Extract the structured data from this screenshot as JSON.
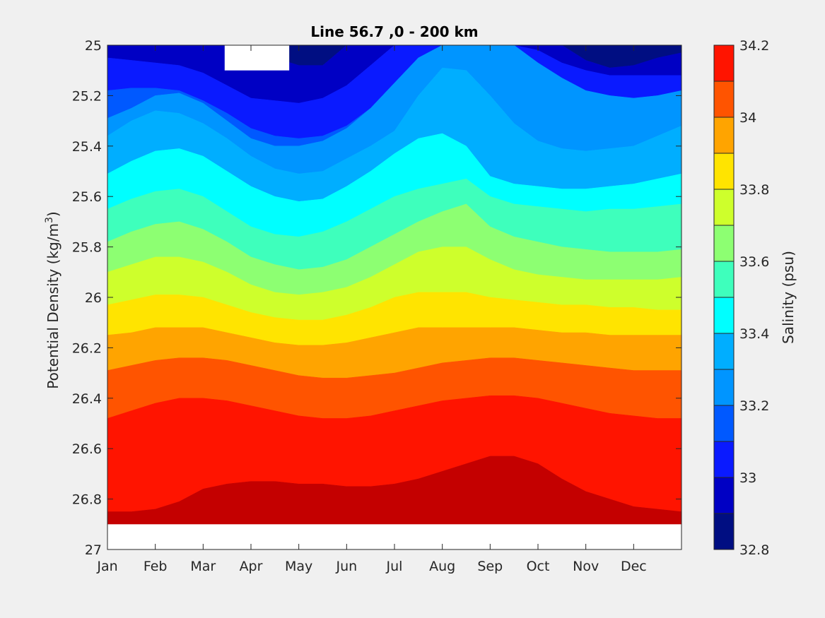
{
  "chart_data": {
    "type": "contourf",
    "title": "Line 56.7 ,0 - 200 km",
    "xlabel": "",
    "ylabel": "Potential Density (kg/m3)",
    "ylabel_parts": {
      "main": "Potential Density (kg/m",
      "sup": "3",
      "close": ")"
    },
    "xlim": [
      1,
      13
    ],
    "ylim": [
      25,
      27
    ],
    "y_reversed": true,
    "x_ticks": [
      {
        "value": 1,
        "label": "Jan"
      },
      {
        "value": 2,
        "label": "Feb"
      },
      {
        "value": 3,
        "label": "Mar"
      },
      {
        "value": 4,
        "label": "Apr"
      },
      {
        "value": 5,
        "label": "May"
      },
      {
        "value": 6,
        "label": "Jun"
      },
      {
        "value": 7,
        "label": "Jul"
      },
      {
        "value": 8,
        "label": "Aug"
      },
      {
        "value": 9,
        "label": "Sep"
      },
      {
        "value": 10,
        "label": "Oct"
      },
      {
        "value": 11,
        "label": "Nov"
      },
      {
        "value": 12,
        "label": "Dec"
      }
    ],
    "y_ticks": [
      {
        "value": 25,
        "label": "25"
      },
      {
        "value": 25.2,
        "label": "25.2"
      },
      {
        "value": 25.4,
        "label": "25.4"
      },
      {
        "value": 25.6,
        "label": "25.6"
      },
      {
        "value": 25.8,
        "label": "25.8"
      },
      {
        "value": 26,
        "label": "26"
      },
      {
        "value": 26.2,
        "label": "26.2"
      },
      {
        "value": 26.4,
        "label": "26.4"
      },
      {
        "value": 26.6,
        "label": "26.6"
      },
      {
        "value": 26.8,
        "label": "26.8"
      },
      {
        "value": 27,
        "label": "27"
      }
    ],
    "colorbar": {
      "label": "Salinity (psu)",
      "limits": [
        32.8,
        34.2
      ],
      "levels": [
        32.8,
        32.9,
        33.0,
        33.1,
        33.2,
        33.3,
        33.4,
        33.5,
        33.6,
        33.7,
        33.8,
        33.9,
        34.0,
        34.1,
        34.2
      ],
      "colors": [
        "#000e82",
        "#0000c4",
        "#0a1aff",
        "#0059ff",
        "#0095ff",
        "#00aeff",
        "#00ffff",
        "#3effbc",
        "#8dff72",
        "#ceff2c",
        "#ffe400",
        "#ffa400",
        "#ff5400",
        "#ff1400",
        "#c40000"
      ],
      "ticks": [
        {
          "value": 32.8,
          "label": "32.8"
        },
        {
          "value": 33.0,
          "label": "33"
        },
        {
          "value": 33.2,
          "label": "33.2"
        },
        {
          "value": 33.4,
          "label": "33.4"
        },
        {
          "value": 33.6,
          "label": "33.6"
        },
        {
          "value": 33.8,
          "label": "33.8"
        },
        {
          "value": 34.0,
          "label": "34"
        },
        {
          "value": 34.2,
          "label": "34.2"
        }
      ]
    },
    "contour_boundaries_x": [
      1.0,
      1.5,
      2.0,
      2.5,
      3.0,
      3.5,
      4.0,
      4.5,
      5.0,
      5.5,
      6.0,
      6.5,
      7.0,
      7.5,
      8.0,
      8.5,
      9.0,
      9.5,
      10.0,
      10.5,
      11.0,
      11.5,
      12.0,
      12.5,
      13.0
    ],
    "contour_boundaries": [
      {
        "level": 32.9,
        "y": [
          25.0,
          25.0,
          25.0,
          25.0,
          25.0,
          25.0,
          25.0,
          25.05,
          25.08,
          25.08,
          25.0,
          25.0,
          25.0,
          25.0,
          25.0,
          25.0,
          25.0,
          25.0,
          25.0,
          25.0,
          25.06,
          25.09,
          25.08,
          25.05,
          25.03
        ]
      },
      {
        "level": 33.0,
        "y": [
          25.05,
          25.06,
          25.07,
          25.08,
          25.11,
          25.16,
          25.21,
          25.22,
          25.23,
          25.21,
          25.16,
          25.08,
          25.0,
          25.0,
          25.0,
          25.0,
          25.0,
          25.0,
          25.02,
          25.07,
          25.1,
          25.12,
          25.12,
          25.12,
          25.12
        ]
      },
      {
        "level": 33.1,
        "y": [
          25.18,
          25.17,
          25.17,
          25.18,
          25.22,
          25.27,
          25.33,
          25.36,
          25.37,
          25.36,
          25.32,
          25.25,
          25.17,
          25.1,
          25.0,
          25.0,
          25.0,
          25.0,
          25.1,
          25.19,
          25.24,
          25.27,
          25.28,
          25.26,
          25.23
        ]
      },
      {
        "level": 33.2,
        "y": [
          25.29,
          25.25,
          25.2,
          25.19,
          25.23,
          25.3,
          25.37,
          25.4,
          25.4,
          25.38,
          25.33,
          25.25,
          25.15,
          25.05,
          25.0,
          25.0,
          25.0,
          25.0,
          25.07,
          25.13,
          25.18,
          25.2,
          25.21,
          25.2,
          25.18
        ]
      },
      {
        "level": 33.3,
        "y": [
          25.36,
          25.3,
          25.26,
          25.27,
          25.31,
          25.37,
          25.44,
          25.49,
          25.51,
          25.5,
          25.45,
          25.4,
          25.34,
          25.2,
          25.09,
          25.1,
          25.2,
          25.31,
          25.38,
          25.41,
          25.42,
          25.41,
          25.4,
          25.36,
          25.32
        ]
      },
      {
        "level": 33.4,
        "y": [
          25.51,
          25.46,
          25.42,
          25.41,
          25.44,
          25.5,
          25.56,
          25.6,
          25.62,
          25.61,
          25.56,
          25.5,
          25.43,
          25.37,
          25.35,
          25.4,
          25.52,
          25.55,
          25.56,
          25.57,
          25.57,
          25.56,
          25.55,
          25.53,
          25.51
        ]
      },
      {
        "level": 33.5,
        "y": [
          25.65,
          25.61,
          25.58,
          25.57,
          25.6,
          25.66,
          25.72,
          25.75,
          25.76,
          25.74,
          25.7,
          25.65,
          25.6,
          25.57,
          25.55,
          25.53,
          25.6,
          25.63,
          25.64,
          25.65,
          25.66,
          25.65,
          25.65,
          25.64,
          25.63
        ]
      },
      {
        "level": 33.6,
        "y": [
          25.78,
          25.74,
          25.71,
          25.7,
          25.73,
          25.78,
          25.84,
          25.87,
          25.89,
          25.88,
          25.85,
          25.8,
          25.75,
          25.7,
          25.66,
          25.63,
          25.72,
          25.76,
          25.78,
          25.8,
          25.81,
          25.82,
          25.82,
          25.82,
          25.81
        ]
      },
      {
        "level": 33.7,
        "y": [
          25.9,
          25.87,
          25.84,
          25.84,
          25.86,
          25.9,
          25.95,
          25.98,
          25.99,
          25.98,
          25.96,
          25.92,
          25.87,
          25.82,
          25.8,
          25.8,
          25.85,
          25.89,
          25.91,
          25.92,
          25.93,
          25.93,
          25.93,
          25.93,
          25.92
        ]
      },
      {
        "level": 33.8,
        "y": [
          26.03,
          26.01,
          25.99,
          25.99,
          26.0,
          26.03,
          26.06,
          26.08,
          26.09,
          26.09,
          26.07,
          26.04,
          26.0,
          25.98,
          25.98,
          25.98,
          26.0,
          26.01,
          26.02,
          26.03,
          26.03,
          26.04,
          26.04,
          26.05,
          26.05
        ]
      },
      {
        "level": 33.9,
        "y": [
          26.15,
          26.14,
          26.12,
          26.12,
          26.12,
          26.14,
          26.16,
          26.18,
          26.19,
          26.19,
          26.18,
          26.16,
          26.14,
          26.12,
          26.12,
          26.12,
          26.12,
          26.12,
          26.13,
          26.14,
          26.14,
          26.15,
          26.15,
          26.15,
          26.15
        ]
      },
      {
        "level": 34.0,
        "y": [
          26.29,
          26.27,
          26.25,
          26.24,
          26.24,
          26.25,
          26.27,
          26.29,
          26.31,
          26.32,
          26.32,
          26.31,
          26.3,
          26.28,
          26.26,
          26.25,
          26.24,
          26.24,
          26.25,
          26.26,
          26.27,
          26.28,
          26.29,
          26.29,
          26.29
        ]
      },
      {
        "level": 34.1,
        "y": [
          26.48,
          26.45,
          26.42,
          26.4,
          26.4,
          26.41,
          26.43,
          26.45,
          26.47,
          26.48,
          26.48,
          26.47,
          26.45,
          26.43,
          26.41,
          26.4,
          26.39,
          26.39,
          26.4,
          26.42,
          26.44,
          26.46,
          26.47,
          26.48,
          26.48
        ]
      },
      {
        "level": 34.2,
        "y": [
          26.85,
          26.85,
          26.84,
          26.81,
          26.76,
          26.74,
          26.73,
          26.73,
          26.74,
          26.74,
          26.75,
          26.75,
          26.74,
          26.72,
          26.69,
          26.66,
          26.63,
          26.63,
          26.66,
          26.72,
          26.77,
          26.8,
          26.83,
          26.84,
          26.85
        ]
      }
    ],
    "missing_data_regions": [
      {
        "x": [
          3.45,
          4.8
        ],
        "y": [
          25.0,
          25.1
        ]
      },
      {
        "x": [
          1.0,
          13.0
        ],
        "y": [
          26.9,
          27.0
        ]
      }
    ]
  }
}
